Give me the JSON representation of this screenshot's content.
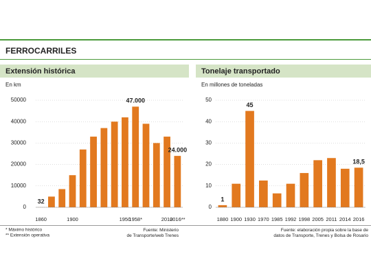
{
  "header": {
    "title": "FERROCARRILES"
  },
  "chart_data": [
    {
      "type": "bar",
      "title": "Extensión histórica",
      "subtitle": "En km",
      "categories": [
        "1860",
        null,
        null,
        "1900",
        null,
        null,
        null,
        null,
        "1950",
        "1958*",
        null,
        null,
        "2010",
        "2016**"
      ],
      "values": [
        32,
        5000,
        8500,
        15000,
        27000,
        33000,
        37000,
        40000,
        42000,
        47000,
        39000,
        30000,
        33000,
        24000
      ],
      "value_labels": [
        "32",
        null,
        null,
        null,
        null,
        null,
        null,
        null,
        null,
        "47.000",
        null,
        null,
        null,
        "24.000"
      ],
      "color": "#e2791f",
      "ylim": [
        0,
        50000
      ],
      "yticks": [
        0,
        10000,
        20000,
        30000,
        40000,
        50000
      ],
      "grid": true,
      "notes": [
        "* Máximo histórico",
        "** Extensión operativa"
      ],
      "source": "Fuente: Ministerio de Transporte/web Trenes"
    },
    {
      "type": "bar",
      "title": "Tonelaje transportado",
      "subtitle": "En millones de toneladas",
      "categories": [
        "1880",
        "1900",
        "1930",
        "1970",
        "1985",
        "1992",
        "1998",
        "2005",
        "2011",
        "2014",
        "2016"
      ],
      "values": [
        1,
        11,
        45,
        12.5,
        6.5,
        11,
        16,
        22,
        23,
        18,
        18.5
      ],
      "value_labels": [
        "1",
        null,
        "45",
        null,
        null,
        null,
        null,
        null,
        null,
        null,
        "18,5"
      ],
      "color": "#e2791f",
      "ylim": [
        0,
        50
      ],
      "yticks": [
        0,
        10,
        20,
        30,
        40,
        50
      ],
      "grid": true,
      "source": "Fuente: elaboración propia sobre la base de datos de Transporte, Trenes y Bolsa de Rosario"
    }
  ]
}
